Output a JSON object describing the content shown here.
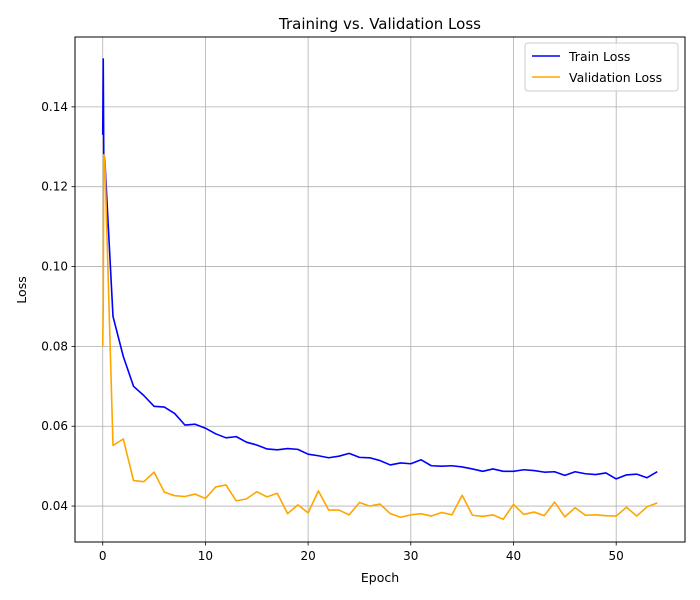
{
  "chart_data": {
    "type": "line",
    "title": "Training vs. Validation Loss",
    "xlabel": "Epoch",
    "ylabel": "Loss",
    "xlim": [
      -2.7,
      56.7
    ],
    "ylim": [
      0.031,
      0.1575
    ],
    "xticks": [
      "0",
      "10",
      "20",
      "30",
      "40",
      "50"
    ],
    "yticks": [
      "0.04",
      "0.06",
      "0.08",
      "0.10",
      "0.12",
      "0.14"
    ],
    "grid": true,
    "legend_position": "top-right",
    "series": [
      {
        "name": "Train Loss",
        "color": "#0000ff",
        "x": [
          0,
          0.05,
          0.1,
          0.2,
          1,
          2,
          3,
          4,
          5,
          6,
          7,
          8,
          9,
          10,
          11,
          12,
          13,
          14,
          15,
          16,
          17,
          18,
          19,
          20,
          21,
          22,
          23,
          24,
          25,
          26,
          27,
          28,
          29,
          30,
          31,
          32,
          33,
          34,
          35,
          36,
          37,
          38,
          39,
          40,
          41,
          42,
          43,
          44,
          45,
          46,
          47,
          48,
          49,
          50,
          51,
          52,
          53,
          54
        ],
        "values": [
          0.133,
          0.152,
          0.128,
          0.127,
          0.0875,
          0.0775,
          0.07,
          0.0677,
          0.065,
          0.0648,
          0.0632,
          0.0603,
          0.0605,
          0.0595,
          0.0581,
          0.0571,
          0.0574,
          0.056,
          0.0553,
          0.0543,
          0.0541,
          0.0544,
          0.0542,
          0.053,
          0.0526,
          0.0521,
          0.0525,
          0.0532,
          0.0522,
          0.0521,
          0.0514,
          0.0503,
          0.0508,
          0.0506,
          0.0516,
          0.0501,
          0.05,
          0.0501,
          0.0498,
          0.0493,
          0.0487,
          0.0493,
          0.0487,
          0.0487,
          0.0491,
          0.0489,
          0.0485,
          0.0486,
          0.0477,
          0.0486,
          0.0481,
          0.0479,
          0.0483,
          0.0468,
          0.0478,
          0.048,
          0.0471,
          0.0486
        ]
      },
      {
        "name": "Validation Loss",
        "color": "#ffa500",
        "x": [
          0,
          0.05,
          0.1,
          0.2,
          1,
          2,
          3,
          4,
          5,
          6,
          7,
          8,
          9,
          10,
          11,
          12,
          13,
          14,
          15,
          16,
          17,
          18,
          19,
          20,
          21,
          22,
          23,
          24,
          25,
          26,
          27,
          28,
          29,
          30,
          31,
          32,
          33,
          34,
          35,
          36,
          37,
          38,
          39,
          40,
          41,
          42,
          43,
          44,
          45,
          46,
          47,
          48,
          49,
          50,
          51,
          52,
          53,
          54
        ],
        "values": [
          0.08,
          0.09,
          0.128,
          0.127,
          0.0552,
          0.0568,
          0.0464,
          0.0461,
          0.0485,
          0.0435,
          0.0426,
          0.0424,
          0.043,
          0.0419,
          0.0448,
          0.0453,
          0.0413,
          0.0418,
          0.0436,
          0.0423,
          0.0432,
          0.0381,
          0.0403,
          0.0383,
          0.0438,
          0.039,
          0.039,
          0.0378,
          0.0409,
          0.04,
          0.0405,
          0.0381,
          0.0372,
          0.0378,
          0.0381,
          0.0375,
          0.0384,
          0.0378,
          0.0427,
          0.0377,
          0.0374,
          0.0378,
          0.0367,
          0.0404,
          0.0379,
          0.0385,
          0.0376,
          0.041,
          0.0373,
          0.0396,
          0.0377,
          0.0378,
          0.0376,
          0.0375,
          0.0397,
          0.0375,
          0.0398,
          0.0408
        ]
      }
    ]
  }
}
